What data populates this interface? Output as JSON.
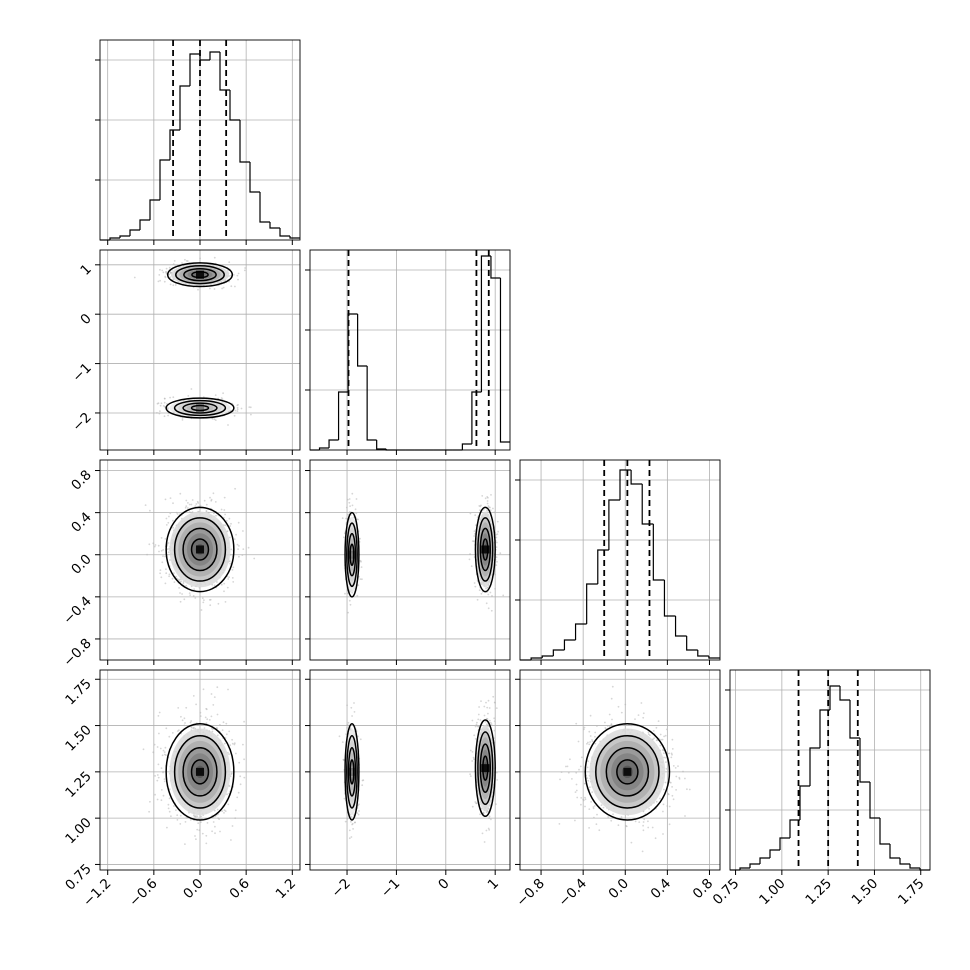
{
  "chart_data": {
    "type": "corner",
    "grid": true,
    "panels_note": "lower-triangle corner plot of 4 parameters",
    "params": [
      {
        "range": [
          -1.3,
          1.3
        ],
        "ticks": [
          -1.2,
          -0.6,
          0.0,
          0.6,
          1.2
        ],
        "tick_labels": [
          "−1.2",
          "−0.6",
          "0.0",
          "0.6",
          "1.2"
        ],
        "quantiles": [
          -0.35,
          0.0,
          0.34
        ],
        "hist_ymax": 1.0,
        "hist_yticks": [
          0.3,
          0.6,
          0.9
        ],
        "hist": [
          0.0,
          0.01,
          0.02,
          0.05,
          0.1,
          0.2,
          0.4,
          0.55,
          0.77,
          0.93,
          0.9,
          0.94,
          0.75,
          0.6,
          0.39,
          0.24,
          0.09,
          0.06,
          0.02,
          0.01
        ]
      },
      {
        "range": [
          -2.75,
          1.3
        ],
        "ticks": [
          -2,
          -1,
          0,
          1
        ],
        "tick_labels": [
          "−2",
          "−1",
          "0",
          "1"
        ],
        "quantiles": [
          -1.97,
          0.62,
          0.87
        ],
        "hist_ymax": 1.0,
        "hist_yticks": [
          0.3,
          0.6,
          0.9
        ],
        "hist": [
          0.0,
          0.01,
          0.05,
          0.29,
          0.68,
          0.42,
          0.05,
          0.005,
          0.0,
          0.0,
          0.0,
          0.0,
          0.0,
          0.0,
          0.0,
          0.0,
          0.03,
          0.29,
          0.97,
          0.86,
          0.04
        ]
      },
      {
        "range": [
          -1.0,
          0.9
        ],
        "ticks": [
          -0.8,
          -0.4,
          0.0,
          0.4,
          0.8
        ],
        "tick_labels": [
          "−0.8",
          "−0.4",
          "0.0",
          "0.4",
          "0.8"
        ],
        "quantiles": [
          -0.2,
          0.02,
          0.23
        ],
        "hist_ymax": 1.0,
        "hist_yticks": [
          0.3,
          0.6,
          0.9
        ],
        "hist": [
          0.0,
          0.01,
          0.02,
          0.05,
          0.1,
          0.18,
          0.38,
          0.55,
          0.8,
          0.95,
          0.88,
          0.68,
          0.4,
          0.22,
          0.12,
          0.05,
          0.02,
          0.01
        ]
      },
      {
        "range": [
          0.72,
          1.8
        ],
        "ticks": [
          0.75,
          1.0,
          1.25,
          1.5,
          1.75
        ],
        "tick_labels": [
          "0.75",
          "1.00",
          "1.25",
          "1.50",
          "1.75"
        ],
        "quantiles": [
          1.09,
          1.25,
          1.41
        ],
        "hist_ymax": 1.0,
        "hist_yticks": [
          0.3,
          0.6,
          0.9
        ],
        "hist": [
          0.0,
          0.01,
          0.03,
          0.06,
          0.1,
          0.16,
          0.25,
          0.42,
          0.61,
          0.8,
          0.92,
          0.85,
          0.66,
          0.44,
          0.26,
          0.13,
          0.06,
          0.03,
          0.01,
          0.0
        ]
      }
    ],
    "pairs": [
      {
        "row": 1,
        "col": 0,
        "modes": [
          {
            "cx": 0.0,
            "cy": 0.8,
            "sx": 0.21,
            "sy": 0.12,
            "w": 0.6,
            "peak": 1.0
          },
          {
            "cx": 0.0,
            "cy": -1.9,
            "sx": 0.22,
            "sy": 0.1,
            "w": 0.4,
            "peak": 0.55
          }
        ]
      },
      {
        "row": 2,
        "col": 0,
        "modes": [
          {
            "cx": 0.0,
            "cy": 0.05,
            "sx": 0.22,
            "sy": 0.2,
            "w": 1.0,
            "peak": 1.0
          }
        ]
      },
      {
        "row": 2,
        "col": 1,
        "modes": [
          {
            "cx": -1.9,
            "cy": 0.0,
            "sx": 0.07,
            "sy": 0.2,
            "w": 0.4,
            "peak": 0.55
          },
          {
            "cx": 0.8,
            "cy": 0.05,
            "sx": 0.1,
            "sy": 0.2,
            "w": 0.6,
            "peak": 1.0
          }
        ]
      },
      {
        "row": 3,
        "col": 0,
        "modes": [
          {
            "cx": 0.0,
            "cy": 1.25,
            "sx": 0.22,
            "sy": 0.13,
            "w": 1.0,
            "peak": 1.0
          }
        ]
      },
      {
        "row": 3,
        "col": 1,
        "modes": [
          {
            "cx": -1.9,
            "cy": 1.25,
            "sx": 0.07,
            "sy": 0.13,
            "w": 0.4,
            "peak": 0.55
          },
          {
            "cx": 0.8,
            "cy": 1.27,
            "sx": 0.1,
            "sy": 0.13,
            "w": 0.6,
            "peak": 1.0
          }
        ]
      },
      {
        "row": 3,
        "col": 2,
        "modes": [
          {
            "cx": 0.02,
            "cy": 1.25,
            "sx": 0.2,
            "sy": 0.13,
            "w": 1.0,
            "peak": 1.0
          }
        ]
      }
    ],
    "contour_levels_sigma": [
      0.5,
      1.0,
      1.5,
      2.0
    ],
    "colors": {
      "hist_line": "#000000",
      "quantile_line": "#000000",
      "contour": "#000000",
      "points": "#b5b5b5",
      "density": "#000000",
      "grid": "#b0b0b0"
    }
  }
}
